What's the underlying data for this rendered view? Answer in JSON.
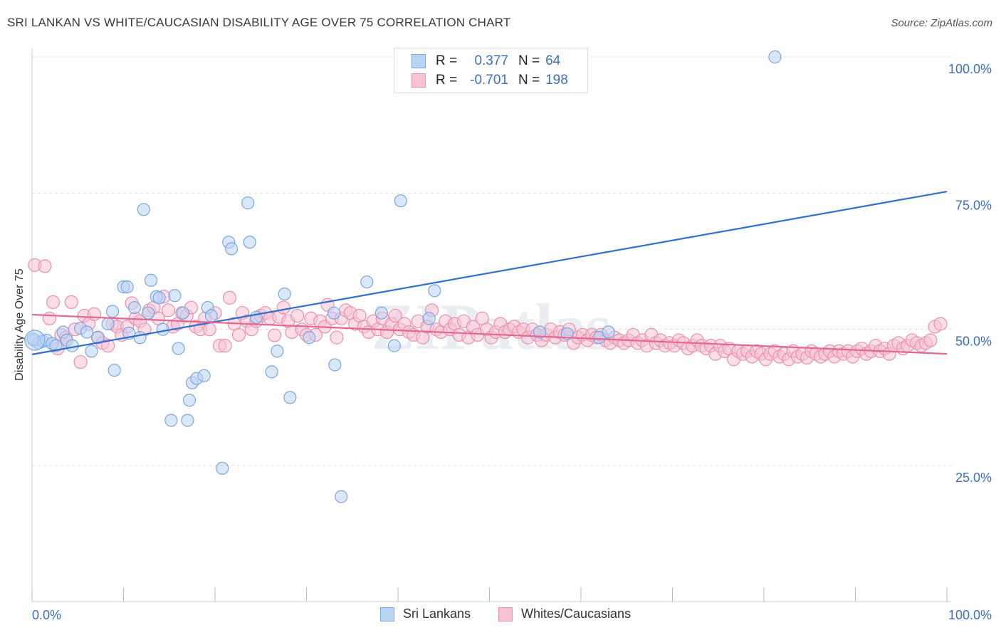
{
  "title": "SRI LANKAN VS WHITE/CAUCASIAN DISABILITY AGE OVER 75 CORRELATION CHART",
  "source": "Source: ZipAtlas.com",
  "watermark": "ZIPatlas",
  "colors": {
    "blue_fill": "#b9d3f5",
    "blue_stroke": "#7aa6e0",
    "blue_line": "#2f6fd0",
    "pink_fill": "#f7c3d3",
    "pink_stroke": "#ea8fae",
    "pink_line": "#e5678f",
    "axis_text": "#3a6fc4",
    "grid": "#dddddd"
  },
  "legend": {
    "rows": [
      {
        "r_label": "R =",
        "r_value": "0.377",
        "n_label": "N =",
        "n_value": "64"
      },
      {
        "r_label": "R =",
        "r_value": "-0.701",
        "n_label": "N =",
        "n_value": "198"
      }
    ]
  },
  "bottom_legend": [
    "Sri Lankans",
    "Whites/Caucasians"
  ],
  "chart_data": {
    "type": "scatter",
    "title": "SRI LANKAN VS WHITE/CAUCASIAN DISABILITY AGE OVER 75 CORRELATION CHART",
    "xlabel": "",
    "ylabel": "Disability Age Over 75",
    "x_tick_labels": [
      "0.0%",
      "100.0%"
    ],
    "y_tick_labels": [
      "25.0%",
      "50.0%",
      "75.0%",
      "100.0%"
    ],
    "xlim": [
      0,
      100
    ],
    "ylim": [
      2,
      102
    ],
    "grid": true,
    "legend_position": "top-center",
    "series": [
      {
        "name": "Sri Lankans",
        "r": 0.377,
        "n": 64,
        "trend": {
          "x": [
            0,
            100
          ],
          "y": [
            45.4,
            75.3
          ]
        },
        "points": [
          [
            0.3,
            48
          ],
          [
            0.7,
            47.5
          ],
          [
            1.2,
            47.8
          ],
          [
            1.6,
            48
          ],
          [
            2.2,
            47.4
          ],
          [
            2.6,
            47
          ],
          [
            3.4,
            49.5
          ],
          [
            3.8,
            48
          ],
          [
            4.4,
            47
          ],
          [
            5.3,
            50.2
          ],
          [
            6,
            49.5
          ],
          [
            6.5,
            46
          ],
          [
            7.2,
            48.5
          ],
          [
            8.3,
            51
          ],
          [
            8.8,
            53.3
          ],
          [
            9,
            42.5
          ],
          [
            10,
            57.8
          ],
          [
            10.4,
            57.8
          ],
          [
            10.6,
            49.3
          ],
          [
            11.2,
            54
          ],
          [
            11.8,
            48.5
          ],
          [
            12.2,
            72
          ],
          [
            12.7,
            53
          ],
          [
            13,
            59
          ],
          [
            13.6,
            56
          ],
          [
            13.9,
            55.8
          ],
          [
            14.3,
            50
          ],
          [
            15.2,
            33.3
          ],
          [
            15.6,
            56.2
          ],
          [
            16,
            46.5
          ],
          [
            16.5,
            53
          ],
          [
            17,
            33.3
          ],
          [
            17.2,
            37
          ],
          [
            17.5,
            40.2
          ],
          [
            18,
            41
          ],
          [
            18.8,
            41.5
          ],
          [
            19.2,
            54
          ],
          [
            19.6,
            52.5
          ],
          [
            20.8,
            24.5
          ],
          [
            21.5,
            66
          ],
          [
            21.8,
            64.8
          ],
          [
            23.6,
            73.2
          ],
          [
            23.8,
            66
          ],
          [
            24.5,
            52.2
          ],
          [
            26.2,
            42.2
          ],
          [
            26.8,
            46
          ],
          [
            27.6,
            56.5
          ],
          [
            28.2,
            37.5
          ],
          [
            30.3,
            48.5
          ],
          [
            33,
            53
          ],
          [
            33.1,
            43.5
          ],
          [
            33.8,
            19.3
          ],
          [
            36.6,
            58.7
          ],
          [
            38.2,
            53
          ],
          [
            39.6,
            47
          ],
          [
            40.3,
            73.6
          ],
          [
            43.4,
            52
          ],
          [
            44,
            57.1
          ],
          [
            55.5,
            49.5
          ],
          [
            58.5,
            49.2
          ],
          [
            62,
            48.5
          ],
          [
            63,
            49.5
          ],
          [
            81.2,
            100
          ],
          [
            0.1,
            48.2
          ]
        ]
      },
      {
        "name": "Whites/Caucasians",
        "r": -0.701,
        "n": 198,
        "trend": {
          "x": [
            0,
            100
          ],
          "y": [
            52.7,
            45.5
          ]
        },
        "points": [
          [
            0.3,
            61.8
          ],
          [
            1.4,
            61.6
          ],
          [
            1.9,
            52
          ],
          [
            2.3,
            55
          ],
          [
            2.8,
            46.5
          ],
          [
            3.2,
            49
          ],
          [
            3.7,
            48.5
          ],
          [
            4.3,
            55
          ],
          [
            4.7,
            50
          ],
          [
            5.3,
            44
          ],
          [
            5.7,
            52.5
          ],
          [
            6.2,
            51
          ],
          [
            6.8,
            52.8
          ],
          [
            7.2,
            48.5
          ],
          [
            7.7,
            47.5
          ],
          [
            8.3,
            47
          ],
          [
            8.8,
            51
          ],
          [
            9.3,
            50.5
          ],
          [
            9.8,
            49
          ],
          [
            10.4,
            50.5
          ],
          [
            10.9,
            54.8
          ],
          [
            11.3,
            52
          ],
          [
            11.8,
            51.5
          ],
          [
            12.3,
            50
          ],
          [
            12.8,
            53.5
          ],
          [
            13.3,
            54
          ],
          [
            13.8,
            52
          ],
          [
            14.4,
            56
          ],
          [
            14.9,
            53.5
          ],
          [
            15.4,
            50.5
          ],
          [
            15.9,
            51
          ],
          [
            16.4,
            53
          ],
          [
            16.9,
            52.5
          ],
          [
            17.4,
            54
          ],
          [
            17.9,
            50.5
          ],
          [
            18.4,
            50
          ],
          [
            18.9,
            52
          ],
          [
            19.4,
            50
          ],
          [
            20,
            53
          ],
          [
            20.5,
            47
          ],
          [
            21.1,
            47
          ],
          [
            21.6,
            55.8
          ],
          [
            22.1,
            51
          ],
          [
            22.6,
            49
          ],
          [
            23,
            53
          ],
          [
            23.5,
            51.5
          ],
          [
            24,
            50
          ],
          [
            24.5,
            51.5
          ],
          [
            25,
            52.5
          ],
          [
            25.5,
            53
          ],
          [
            26,
            52
          ],
          [
            26.5,
            48.9
          ],
          [
            27,
            52.3
          ],
          [
            27.5,
            54
          ],
          [
            28,
            51.5
          ],
          [
            28.4,
            49.5
          ],
          [
            29,
            52.5
          ],
          [
            29.5,
            50
          ],
          [
            30,
            49
          ],
          [
            30.5,
            52
          ],
          [
            31,
            49
          ],
          [
            31.5,
            51.5
          ],
          [
            32,
            50.5
          ],
          [
            32.3,
            54.5
          ],
          [
            32.8,
            52
          ],
          [
            33.3,
            48.5
          ],
          [
            33.8,
            52
          ],
          [
            34.3,
            53.5
          ],
          [
            34.8,
            53
          ],
          [
            35.3,
            51
          ],
          [
            35.8,
            52.5
          ],
          [
            36.3,
            50.5
          ],
          [
            36.8,
            49.5
          ],
          [
            37.3,
            51.5
          ],
          [
            37.8,
            50
          ],
          [
            38.3,
            52
          ],
          [
            38.8,
            49.5
          ],
          [
            39.3,
            51
          ],
          [
            39.7,
            52.5
          ],
          [
            40.2,
            50
          ],
          [
            40.7,
            51
          ],
          [
            41.2,
            49.5
          ],
          [
            41.7,
            49
          ],
          [
            42.2,
            51.5
          ],
          [
            42.7,
            48.5
          ],
          [
            43.2,
            50.5
          ],
          [
            43.7,
            53.5
          ],
          [
            44.2,
            50
          ],
          [
            44.7,
            49.5
          ],
          [
            45.2,
            51.5
          ],
          [
            45.7,
            50
          ],
          [
            46.2,
            51
          ],
          [
            46.7,
            49
          ],
          [
            47.2,
            51.5
          ],
          [
            47.7,
            48.5
          ],
          [
            48.2,
            50.5
          ],
          [
            48.7,
            49
          ],
          [
            49.2,
            52
          ],
          [
            49.7,
            50
          ],
          [
            50.2,
            48.5
          ],
          [
            50.7,
            49.5
          ],
          [
            51.2,
            51
          ],
          [
            51.7,
            49.5
          ],
          [
            52.2,
            50
          ],
          [
            52.7,
            50.5
          ],
          [
            53.2,
            49.5
          ],
          [
            53.7,
            50
          ],
          [
            54.2,
            48.5
          ],
          [
            54.7,
            50
          ],
          [
            55.2,
            49
          ],
          [
            55.7,
            48
          ],
          [
            56.2,
            49
          ],
          [
            56.7,
            50
          ],
          [
            57.2,
            48.5
          ],
          [
            57.7,
            49.5
          ],
          [
            58.2,
            49
          ],
          [
            58.7,
            50
          ],
          [
            59.2,
            47.5
          ],
          [
            59.7,
            48.5
          ],
          [
            60.2,
            49
          ],
          [
            60.7,
            48
          ],
          [
            61.2,
            49
          ],
          [
            61.7,
            48.5
          ],
          [
            62.2,
            49
          ],
          [
            62.7,
            48
          ],
          [
            63.2,
            47.5
          ],
          [
            63.7,
            48.5
          ],
          [
            64.2,
            48
          ],
          [
            64.7,
            47.5
          ],
          [
            65.2,
            48
          ],
          [
            65.7,
            49
          ],
          [
            66.2,
            47.5
          ],
          [
            66.7,
            48
          ],
          [
            67.2,
            47
          ],
          [
            67.7,
            49
          ],
          [
            68.2,
            47.5
          ],
          [
            68.7,
            48
          ],
          [
            69.2,
            47
          ],
          [
            69.7,
            47.5
          ],
          [
            70.2,
            47
          ],
          [
            70.7,
            48
          ],
          [
            71.2,
            47.5
          ],
          [
            71.7,
            46.5
          ],
          [
            72.2,
            47
          ],
          [
            72.7,
            48
          ],
          [
            73.2,
            47
          ],
          [
            73.7,
            46.5
          ],
          [
            74.2,
            47
          ],
          [
            74.7,
            45.5
          ],
          [
            75.2,
            47
          ],
          [
            75.7,
            46
          ],
          [
            76.2,
            46.5
          ],
          [
            76.7,
            44.5
          ],
          [
            77.2,
            46
          ],
          [
            77.7,
            45.5
          ],
          [
            78.2,
            46
          ],
          [
            78.7,
            45
          ],
          [
            79.2,
            46
          ],
          [
            79.7,
            45.5
          ],
          [
            80.2,
            44.5
          ],
          [
            80.7,
            45.5
          ],
          [
            81.2,
            46
          ],
          [
            81.7,
            45
          ],
          [
            82.2,
            45.5
          ],
          [
            82.7,
            44.5
          ],
          [
            83.2,
            46
          ],
          [
            83.7,
            45
          ],
          [
            84.2,
            45.5
          ],
          [
            84.7,
            44.8
          ],
          [
            85.2,
            46
          ],
          [
            85.7,
            45.5
          ],
          [
            86.2,
            45
          ],
          [
            86.7,
            45.5
          ],
          [
            87.2,
            46
          ],
          [
            87.7,
            45
          ],
          [
            88.2,
            46
          ],
          [
            88.7,
            45.5
          ],
          [
            89.2,
            46
          ],
          [
            89.7,
            45
          ],
          [
            90.2,
            46
          ],
          [
            90.7,
            46.5
          ],
          [
            91.2,
            45.5
          ],
          [
            91.7,
            46
          ],
          [
            92.2,
            47
          ],
          [
            92.7,
            46
          ],
          [
            93.2,
            46.5
          ],
          [
            93.7,
            45.5
          ],
          [
            94.2,
            47
          ],
          [
            94.7,
            47.5
          ],
          [
            95.2,
            46.5
          ],
          [
            95.7,
            47
          ],
          [
            96.2,
            48
          ],
          [
            96.7,
            47.5
          ],
          [
            97.2,
            47
          ],
          [
            97.7,
            47.5
          ],
          [
            98.2,
            48
          ],
          [
            98.7,
            50.5
          ],
          [
            99.3,
            51
          ]
        ]
      }
    ]
  }
}
